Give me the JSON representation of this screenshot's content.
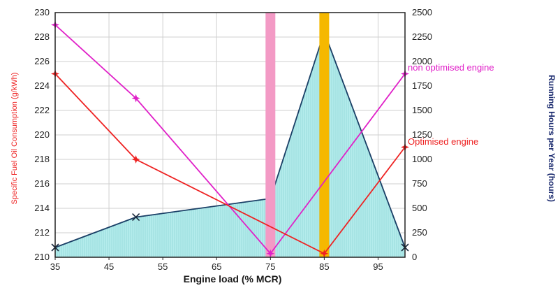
{
  "chart_data": {
    "type": "line",
    "xlabel": "Engine load (% MCR)",
    "ylabel_left": "Specific Fuel Oil Consumption (g/kWh)",
    "ylabel_right": "Running Hours per Year (hours)",
    "x_ticks": [
      35,
      45,
      55,
      65,
      75,
      85,
      95
    ],
    "xlim": [
      35,
      100
    ],
    "ylim_left": [
      210,
      230
    ],
    "y_ticks_left": [
      210,
      212,
      214,
      216,
      218,
      220,
      222,
      224,
      226,
      228,
      230
    ],
    "ylim_right": [
      0,
      2500
    ],
    "y_ticks_right": [
      "0",
      "250",
      "500",
      "750",
      "1000",
      "1250",
      "1500",
      "1750",
      "2000",
      "2250",
      "2500"
    ],
    "grid": true,
    "series": [
      {
        "name": "non optimised engine",
        "axis": "left",
        "color": "#e020c8",
        "marker": "star",
        "x": [
          35,
          50,
          75,
          100
        ],
        "y": [
          229,
          223,
          210.3,
          225
        ]
      },
      {
        "name": "Optimised engine",
        "axis": "left",
        "color": "#ee2222",
        "marker": "star",
        "x": [
          35,
          50,
          85,
          100
        ],
        "y": [
          225,
          218,
          210.3,
          219
        ]
      },
      {
        "name": "",
        "axis": "right",
        "type": "area",
        "color": "#1a3f66",
        "fill": "#b4ecec",
        "marker": "x",
        "x": [
          35,
          50,
          75,
          85,
          100
        ],
        "y": [
          100,
          410,
          600,
          2300,
          100
        ]
      }
    ],
    "vertical_bands": [
      {
        "x": 75,
        "color": "#f39ac5"
      },
      {
        "x": 85,
        "color": "#f5b800"
      }
    ],
    "annotations": [
      {
        "text": "non optimised engine",
        "color": "#e020c8"
      },
      {
        "text": "Optimised engine",
        "color": "#ee2222"
      }
    ]
  }
}
